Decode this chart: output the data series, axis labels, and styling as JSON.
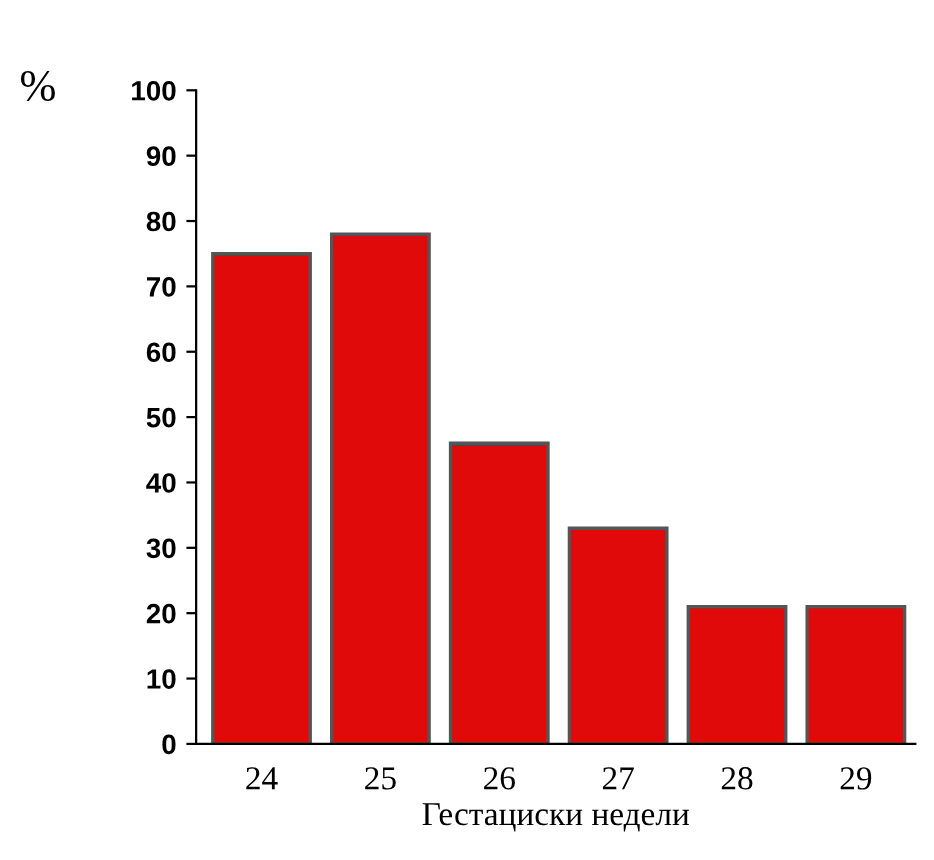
{
  "chart_data": {
    "type": "bar",
    "ylabel": "%",
    "xlabel": "Гестациски недели",
    "categories": [
      "24",
      "25",
      "26",
      "27",
      "28",
      "29"
    ],
    "values": [
      75,
      78,
      46,
      33,
      21,
      21
    ],
    "color": "#e00a0a",
    "ylim": [
      0,
      100
    ],
    "yticks": [
      0,
      10,
      20,
      30,
      40,
      50,
      60,
      70,
      80,
      90,
      100
    ],
    "grid": false,
    "legend": false
  }
}
